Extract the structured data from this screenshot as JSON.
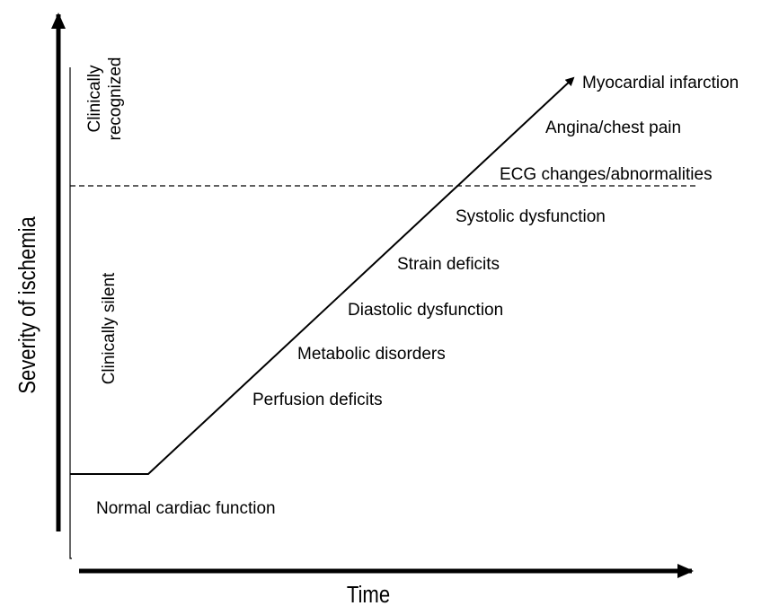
{
  "axes": {
    "y_label": "Severity of ischemia",
    "x_label": "Time"
  },
  "zones": {
    "recognized": [
      "Clinically",
      "recognized"
    ],
    "silent": "Clinically silent"
  },
  "baseline": "Normal cardiac function",
  "stages": [
    "Perfusion deficits",
    "Metabolic disorders",
    "Diastolic dysfunction",
    "Strain deficits",
    "Systolic dysfunction",
    "ECG changes/abnormalities",
    "Angina/chest pain",
    "Myocardial infarction"
  ]
}
